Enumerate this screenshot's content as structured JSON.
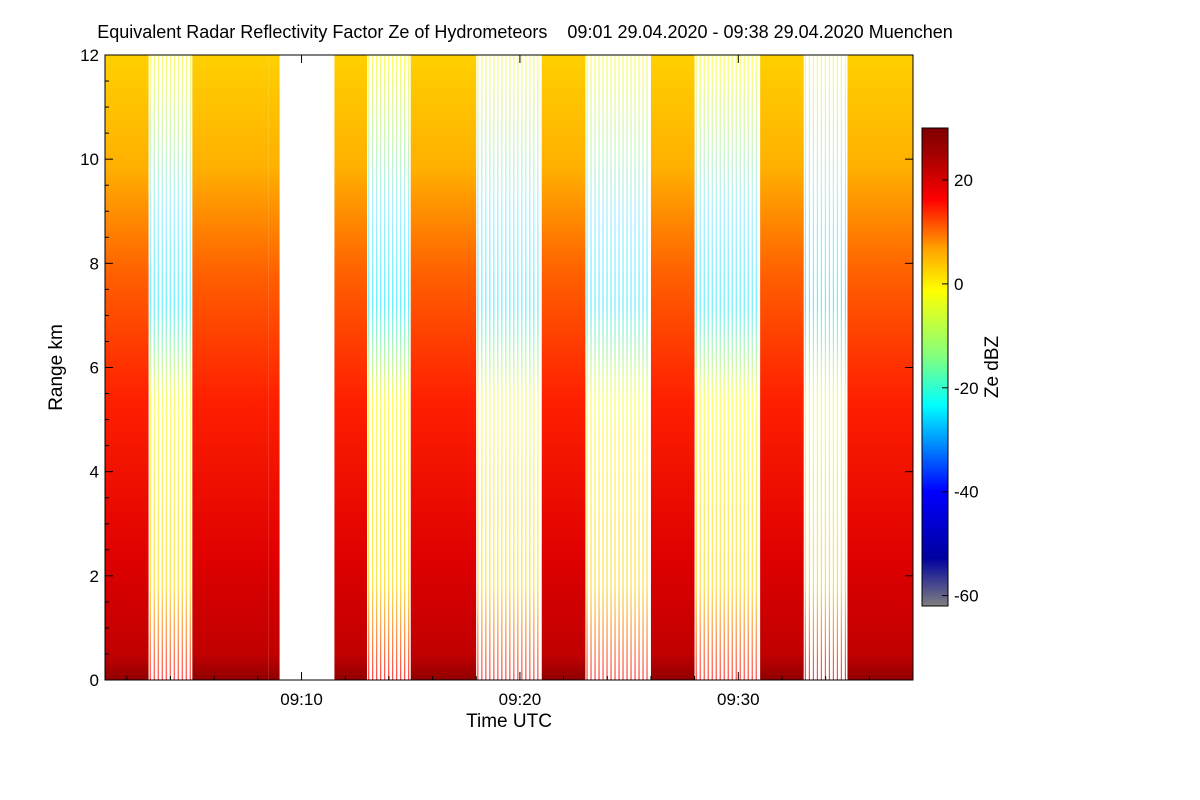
{
  "title": "Equivalent Radar Reflectivity Factor Ze of Hydrometeors",
  "period": "09:01 29.04.2020 - 09:38 29.04.2020",
  "location": "Muenchen",
  "chart_data": {
    "type": "heatmap",
    "xlabel": "Time UTC",
    "ylabel": "Range km",
    "colorbar_label": "Ze dBZ",
    "x_range": [
      "09:01",
      "09:38"
    ],
    "x_ticks": [
      "09:10",
      "09:20",
      "09:30"
    ],
    "y_range": [
      0,
      12
    ],
    "y_ticks": [
      0,
      2,
      4,
      6,
      8,
      10,
      12
    ],
    "colorbar_range": [
      -62,
      30
    ],
    "colorbar_ticks": [
      20,
      0,
      -20,
      -40,
      -60
    ],
    "colormap": [
      "#808080",
      "#0000a0",
      "#0000ff",
      "#00ffff",
      "#80ff80",
      "#ffff00",
      "#ffa000",
      "#ff0000",
      "#a00000",
      "#800000"
    ],
    "data_gap": {
      "start": "09:09",
      "end": "09:11.5",
      "color": "#ffffff"
    },
    "scan_segments": [
      {
        "start": "09:01",
        "end": "09:03",
        "style": "solid"
      },
      {
        "start": "09:03",
        "end": "09:05",
        "style": "striped"
      },
      {
        "start": "09:05",
        "end": "09:08.5",
        "style": "solid"
      },
      {
        "start": "09:08.5",
        "end": "09:09",
        "style": "solid"
      },
      {
        "start": "09:11.5",
        "end": "09:13",
        "style": "solid"
      },
      {
        "start": "09:13",
        "end": "09:15",
        "style": "striped"
      },
      {
        "start": "09:15",
        "end": "09:18",
        "style": "solid"
      },
      {
        "start": "09:18",
        "end": "09:21",
        "style": "striped"
      },
      {
        "start": "09:21",
        "end": "09:23",
        "style": "solid"
      },
      {
        "start": "09:23",
        "end": "09:26",
        "style": "striped"
      },
      {
        "start": "09:26",
        "end": "09:28",
        "style": "solid"
      },
      {
        "start": "09:28",
        "end": "09:31",
        "style": "striped"
      },
      {
        "start": "09:31",
        "end": "09:33",
        "style": "solid"
      },
      {
        "start": "09:33",
        "end": "09:35",
        "style": "striped"
      },
      {
        "start": "09:35",
        "end": "09:38",
        "style": "solid"
      }
    ],
    "typical_profile": [
      {
        "range_km": 0.2,
        "ze_dbz": 28
      },
      {
        "range_km": 2,
        "ze_dbz": 25
      },
      {
        "range_km": 4,
        "ze_dbz": 20
      },
      {
        "range_km": 6,
        "ze_dbz": 15
      },
      {
        "range_km": 8,
        "ze_dbz": 8
      },
      {
        "range_km": 10,
        "ze_dbz": 2
      },
      {
        "range_km": 12,
        "ze_dbz": -2
      }
    ]
  }
}
